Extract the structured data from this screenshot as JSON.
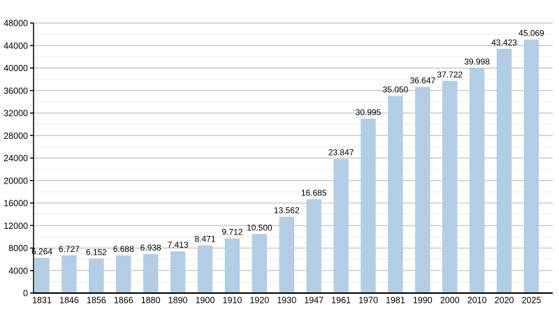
{
  "page": {
    "background": "#ffffff"
  },
  "chart_data": {
    "type": "bar",
    "title": "",
    "xlabel": "",
    "ylabel": "",
    "categories": [
      "1831",
      "1846",
      "1856",
      "1866",
      "1880",
      "1890",
      "1900",
      "1910",
      "1920",
      "1930",
      "1947",
      "1961",
      "1970",
      "1981",
      "1990",
      "2000",
      "2010",
      "2020",
      "2025"
    ],
    "values": [
      6264,
      6727,
      6152,
      6688,
      6938,
      7413,
      8471,
      9712,
      10500,
      13562,
      16685,
      23847,
      30995,
      35050,
      36647,
      37722,
      39998,
      43423,
      45069
    ],
    "value_labels": [
      "6.264",
      "6.727",
      "6.152",
      "6.688",
      "6.938",
      "7.413",
      "8.471",
      "9.712",
      "10.500",
      "13.562",
      "16.685",
      "23.847",
      "30.995",
      "35.050",
      "36.647",
      "37.722",
      "39.998",
      "43.423",
      "45.069"
    ],
    "ylim": [
      0,
      48000
    ],
    "y_major_step": 4000,
    "y_minor_step": 2000,
    "y_tick_labels": [
      "0",
      "4000",
      "8000",
      "12000",
      "16000",
      "20000",
      "24000",
      "28000",
      "32000",
      "36000",
      "40000",
      "44000",
      "48000"
    ],
    "grid": true,
    "legend": "none",
    "colors": {
      "bar_fill": "#b3cde4",
      "major_gridline": "#b3b3b3",
      "minor_gridline": "#e9e9e9",
      "axis": "#000000",
      "text": "#000000"
    }
  }
}
